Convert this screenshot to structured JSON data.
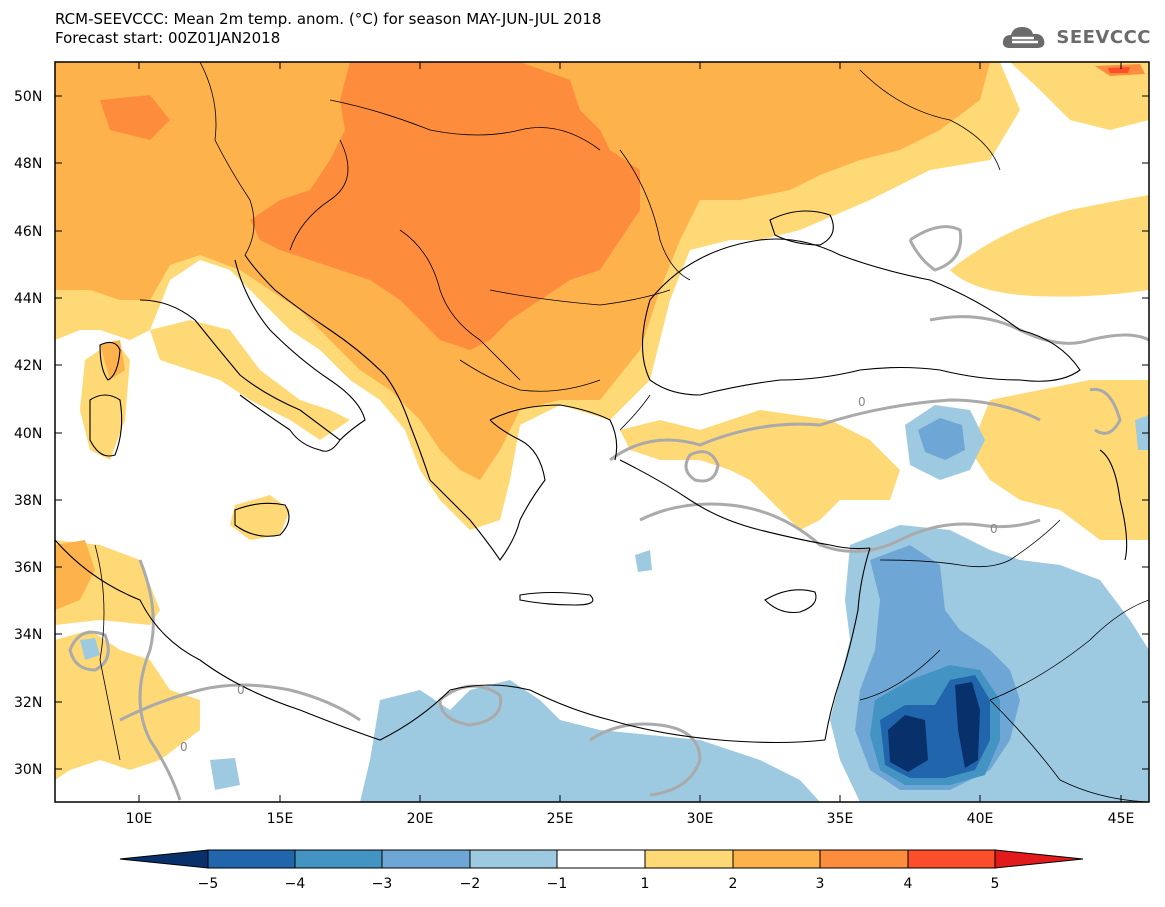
{
  "header": {
    "title_line1": "RCM-SEEVCCC: Mean 2m temp. anom. (°C) for season MAY-JUN-JUL 2018",
    "title_line2": "Forecast start: 00Z01JAN2018",
    "logo_text": "SEEVCCC"
  },
  "map": {
    "lon_range": [
      7,
      46
    ],
    "lat_range": [
      29,
      51
    ],
    "lat_ticks": [
      "30N",
      "32N",
      "34N",
      "36N",
      "38N",
      "40N",
      "42N",
      "44N",
      "46N",
      "48N",
      "50N"
    ],
    "lon_ticks": [
      "10E",
      "15E",
      "20E",
      "25E",
      "30E",
      "35E",
      "40E",
      "45E"
    ],
    "contour_label": "0",
    "sea_color": "#ffffff",
    "land_neutral_color": "#ffffff"
  },
  "colorbar": {
    "tick_labels": [
      "−5",
      "−4",
      "−3",
      "−2",
      "−1",
      "1",
      "2",
      "3",
      "4",
      "5"
    ],
    "colors": [
      "#08306b",
      "#2166ac",
      "#4393c3",
      "#6ea7d6",
      "#9ecae1",
      "#ffffff",
      "#fed976",
      "#feb24c",
      "#fd8d3c",
      "#fc4e2a",
      "#e31a1c"
    ]
  },
  "legend_colors": {
    "anom_1_2": "#fed976",
    "anom_2_3": "#feb24c",
    "anom_3_4": "#fd8d3c",
    "anom_4_5": "#fc4e2a",
    "anom_m1_m2": "#9ecae1",
    "anom_m2_m3": "#6ea7d6",
    "anom_m3_m4": "#4393c3",
    "anom_m4_m5": "#2166ac",
    "anom_lt_m5": "#08306b"
  }
}
